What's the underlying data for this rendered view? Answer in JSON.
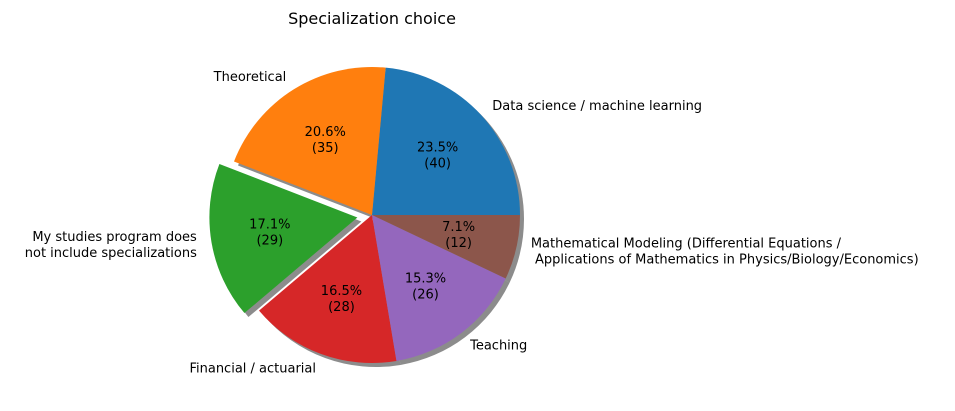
{
  "chart_data": {
    "type": "pie",
    "title": "Specialization choice",
    "slices": [
      {
        "label": "Data science / machine learning",
        "pct_label": "23.5%",
        "count_label": "(40)",
        "value": 40,
        "color": "#1f77b4",
        "exploded": false
      },
      {
        "label": "Theoretical",
        "pct_label": "20.6%",
        "count_label": "(35)",
        "value": 35,
        "color": "#ff7f0e",
        "exploded": false
      },
      {
        "label": "My studies program does\nnot include specializations",
        "pct_label": "17.1%",
        "count_label": "(29)",
        "value": 29,
        "color": "#2ca02c",
        "exploded": true
      },
      {
        "label": "Financial / actuarial",
        "pct_label": "16.5%",
        "count_label": "(28)",
        "value": 28,
        "color": "#d62728",
        "exploded": false
      },
      {
        "label": "Teaching",
        "pct_label": "15.3%",
        "count_label": "(26)",
        "value": 26,
        "color": "#9467bd",
        "exploded": false
      },
      {
        "label": "Mathematical Modeling (Differential Equations /\n Applications of Mathematics in Physics/Biology/Economics)",
        "pct_label": "7.1%",
        "count_label": "(12)",
        "value": 12,
        "color": "#8c564b",
        "exploded": false
      }
    ],
    "start_angle": 0,
    "direction": "counterclockwise",
    "shadow": true
  }
}
